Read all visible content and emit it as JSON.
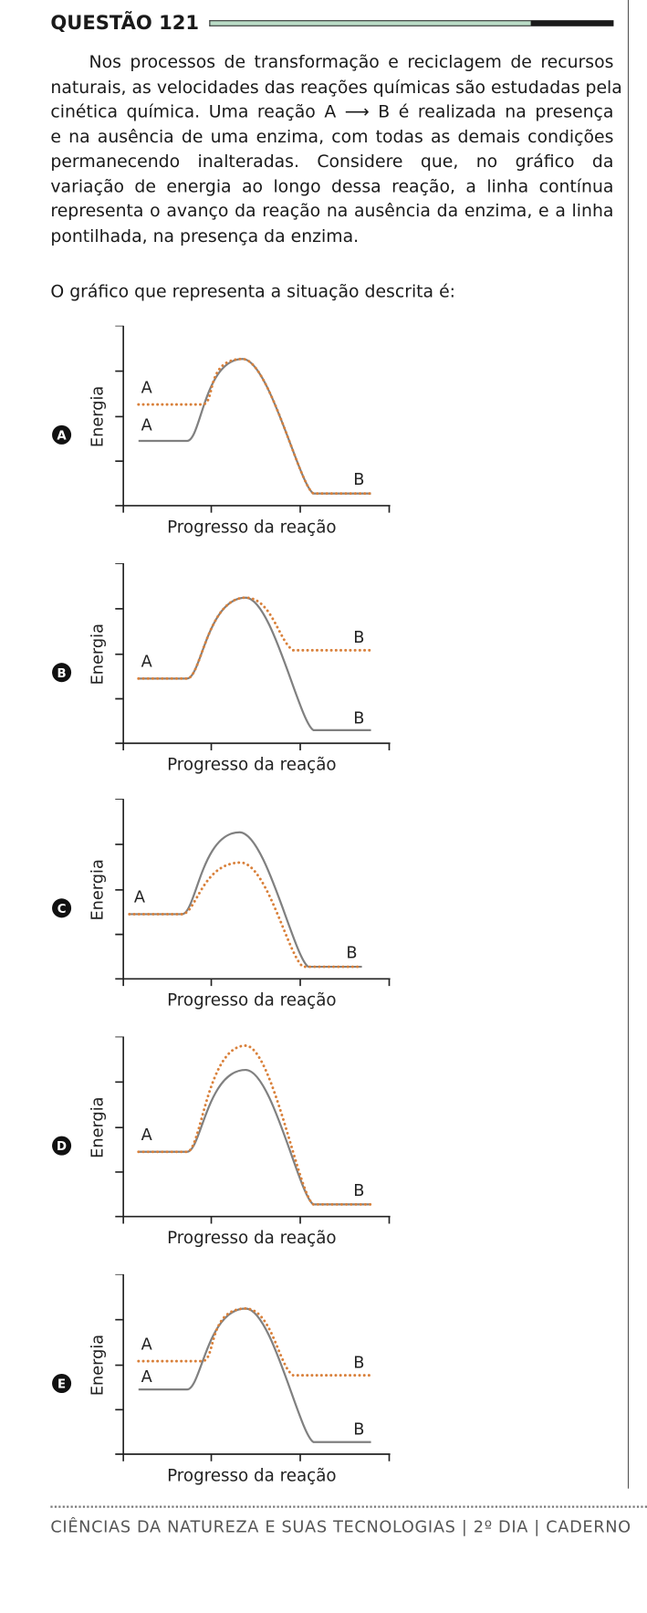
{
  "header": {
    "title": "QUESTÃO 121"
  },
  "body": {
    "lines": [
      "Nos processos de transformação e reciclagem de recursos",
      "naturais, as velocidades das reações químicas são estudadas pela",
      "cinética química. Uma reação A ⟶ B é realizada na presença",
      "e na ausência de uma enzima, com todas as demais condições",
      "permanecendo inalteradas. Considere que, no gráfico da",
      "variação de energia ao longo dessa reação, a linha contínua",
      "representa o avanço da reação na ausência da enzima, e a linha",
      "pontilhada, na presença da enzima."
    ],
    "prompt": "O gráfico que representa a situação descrita é:"
  },
  "options": [
    {
      "letter": "A",
      "y_label": "Energia",
      "x_label": "Progresso da reação",
      "labels": [
        "A",
        "A",
        "B"
      ]
    },
    {
      "letter": "B",
      "y_label": "Energia",
      "x_label": "Progresso da reação",
      "labels": [
        "A",
        "B",
        "B"
      ]
    },
    {
      "letter": "C",
      "y_label": "Energia",
      "x_label": "Progresso da reação",
      "labels": [
        "A",
        "B"
      ]
    },
    {
      "letter": "D",
      "y_label": "Energia",
      "x_label": "Progresso da reação",
      "labels": [
        "A",
        "B"
      ]
    },
    {
      "letter": "E",
      "y_label": "Energia",
      "x_label": "Progresso da reação",
      "labels": [
        "A",
        "A",
        "B",
        "B"
      ]
    }
  ],
  "footer": "CIÊNCIAS DA NATUREZA E SUAS TECNOLOGIAS | 2º DIA | CADERNO"
}
